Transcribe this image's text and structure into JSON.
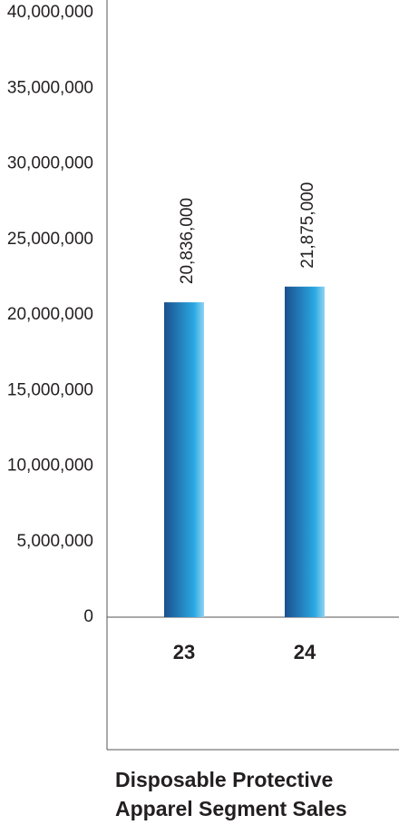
{
  "chart_data": {
    "type": "bar",
    "title": "Disposable Protective Apparel Segment Sales",
    "categories": [
      "23",
      "24"
    ],
    "values": [
      20836000,
      21875000
    ],
    "value_labels": [
      "20,836,000",
      "21,875,000"
    ],
    "ylim": [
      0,
      40000000
    ],
    "yticks": [
      0,
      {
        "value": 5000000,
        "label": "5,000,000"
      },
      {
        "value": 10000000,
        "label": "10,000,000"
      },
      {
        "value": 15000000,
        "label": "15,000,000"
      },
      {
        "value": 20000000,
        "label": "20,000,000"
      },
      {
        "value": 25000000,
        "label": "25,000,000"
      },
      {
        "value": 30000000,
        "label": "30,000,000"
      },
      {
        "value": 35000000,
        "label": "35,000,000"
      },
      {
        "value": 40000000,
        "label": "40,000,000"
      }
    ],
    "colors": [
      "#1b4f8e",
      "#2aa8e2"
    ],
    "grid": false
  }
}
